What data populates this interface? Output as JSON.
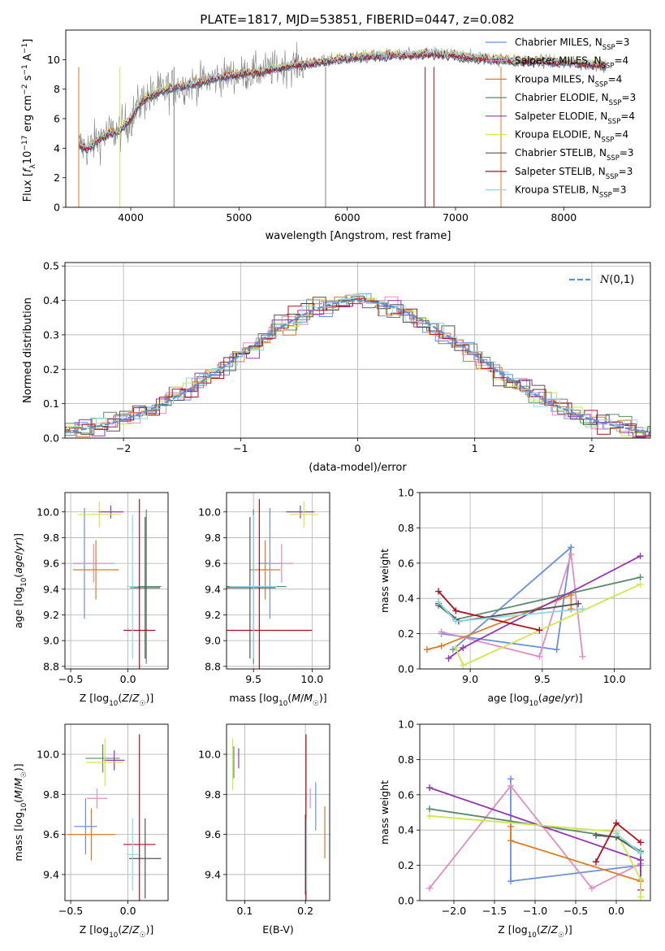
{
  "figure": {
    "title": "PLATE=1817, MJD=53851, FIBERID=0447, z=0.082"
  },
  "colors": {
    "Chabrier MILES": "#6b8fde",
    "Salpeter MILES": "#de8ec1",
    "Kroupa MILES": "#e07b24",
    "Chabrier ELODIE": "#5c8a6f",
    "Salpeter ELODIE": "#9435b5",
    "Kroupa ELODIE": "#cfe84a",
    "Chabrier STELIB": "#555555",
    "Salpeter STELIB": "#b0101d",
    "Kroupa STELIB": "#8ed8e6",
    "observed": "#7f7f7f",
    "normal": "#5b8fd8"
  },
  "chart_data": [
    {
      "id": "spectrum",
      "type": "line",
      "xlabel": "wavelength [Angstrom, rest frame]",
      "ylabel": "Flux [f_λ10^-17 erg cm^-2 s^-1 A^-1]",
      "xlim": [
        3400,
        8800
      ],
      "ylim": [
        0,
        12
      ],
      "xticks": [
        4000,
        5000,
        6000,
        7000,
        8000
      ],
      "yticks": [
        0,
        2,
        4,
        6,
        8,
        10
      ],
      "grid": false,
      "legend_position": "right",
      "legend": [
        {
          "model": "Chabrier MILES",
          "label": "Chabrier MILES, N",
          "sub": "SSP",
          "tail": "=3"
        },
        {
          "model": "Salpeter MILES",
          "label": "Salpeter MILES, N",
          "sub": "SSP",
          "tail": "=4"
        },
        {
          "model": "Kroupa MILES",
          "label": "Kroupa MILES, N",
          "sub": "SSP",
          "tail": "=4"
        },
        {
          "model": "Chabrier ELODIE",
          "label": "Chabrier ELODIE, N",
          "sub": "SSP",
          "tail": "=3"
        },
        {
          "model": "Salpeter ELODIE",
          "label": "Salpeter ELODIE, N",
          "sub": "SSP",
          "tail": "=4"
        },
        {
          "model": "Kroupa ELODIE",
          "label": "Kroupa ELODIE, N",
          "sub": "SSP",
          "tail": "=4"
        },
        {
          "model": "Chabrier STELIB",
          "label": "Chabrier STELIB, N",
          "sub": "SSP",
          "tail": "=3"
        },
        {
          "model": "Salpeter STELIB",
          "label": "Salpeter STELIB, N",
          "sub": "SSP",
          "tail": "=3"
        },
        {
          "model": "Kroupa STELIB",
          "label": "Kroupa STELIB, N",
          "sub": "SSP",
          "tail": "=3"
        }
      ],
      "continuum": {
        "wavelength": [
          3520,
          3600,
          3700,
          3800,
          3900,
          4000,
          4100,
          4200,
          4300,
          4400,
          4600,
          4800,
          5000,
          5200,
          5400,
          5600,
          5800,
          6000,
          6200,
          6400,
          6600,
          6800,
          7000,
          7200,
          7400,
          7600,
          7800,
          8000,
          8200,
          8400
        ],
        "flux": [
          4.2,
          4.0,
          4.6,
          5.0,
          5.2,
          6.0,
          7.2,
          7.6,
          7.9,
          8.1,
          8.4,
          8.8,
          9.0,
          9.2,
          9.5,
          9.7,
          9.9,
          10.1,
          10.2,
          10.3,
          10.3,
          10.4,
          10.3,
          10.1,
          10.0,
          9.9,
          9.9,
          9.8,
          9.7,
          9.6
        ]
      }
    },
    {
      "id": "residuals",
      "type": "histogram",
      "xlabel": "(data-model)/error",
      "ylabel": "Normed distribution",
      "xlim": [
        -2.5,
        2.5
      ],
      "ylim": [
        0,
        0.51
      ],
      "xticks": [
        -2,
        -1,
        0,
        1,
        2
      ],
      "yticks": [
        0.0,
        0.1,
        0.2,
        0.3,
        0.4,
        0.5
      ],
      "grid": true,
      "legend_position": "top-right",
      "legend_label": "N(0,1)",
      "bin_width": 0.11,
      "reference_curve": "standard normal N(0,1)"
    },
    {
      "id": "z-age",
      "type": "errorbar",
      "xlabel": "Z [log10(Z/Z☉)]",
      "ylabel": "age [log10(age/yr)]",
      "xlim": [
        -0.55,
        0.35
      ],
      "ylim": [
        8.78,
        10.15
      ],
      "xticks": [
        -0.5,
        0.0
      ],
      "yticks": [
        8.8,
        9.0,
        9.2,
        9.4,
        9.6,
        9.8,
        10.0
      ],
      "grid": true,
      "points": [
        {
          "model": "Chabrier MILES",
          "x": -0.38,
          "xerr": 0.1,
          "y": 9.6,
          "yerr": 0.43
        },
        {
          "model": "Salpeter MILES",
          "x": -0.3,
          "xerr": 0.18,
          "y": 9.6,
          "yerr": 0.15
        },
        {
          "model": "Kroupa MILES",
          "x": -0.28,
          "xerr": 0.2,
          "y": 9.55,
          "yerr": 0.23
        },
        {
          "model": "Chabrier ELODIE",
          "x": 0.16,
          "xerr": 0.13,
          "y": 9.42,
          "yerr": 0.6
        },
        {
          "model": "Salpeter ELODIE",
          "x": -0.15,
          "xerr": 0.11,
          "y": 10.0,
          "yerr": 0.05
        },
        {
          "model": "Kroupa ELODIE",
          "x": -0.25,
          "xerr": 0.19,
          "y": 9.98,
          "yerr": 0.1
        },
        {
          "model": "Chabrier STELIB",
          "x": 0.15,
          "xerr": 0.13,
          "y": 9.41,
          "yerr": 0.55
        },
        {
          "model": "Salpeter STELIB",
          "x": 0.1,
          "xerr": 0.14,
          "y": 9.08,
          "yerr": 1.02
        },
        {
          "model": "Kroupa STELIB",
          "x": 0.04,
          "xerr": 0.05,
          "y": 9.42,
          "yerr": 0.56
        }
      ]
    },
    {
      "id": "mass-age",
      "type": "errorbar",
      "xlabel": "mass [log10(M/M☉)]",
      "ylabel": "",
      "xlim": [
        9.27,
        10.15
      ],
      "ylim": [
        8.78,
        10.15
      ],
      "xticks": [
        9.5,
        10.0
      ],
      "yticks": [
        8.8,
        9.0,
        9.2,
        9.4,
        9.6,
        9.8,
        10.0
      ],
      "grid": true,
      "points": [
        {
          "model": "Chabrier MILES",
          "x": 9.64,
          "xerr": 0.1,
          "y": 9.6,
          "yerr": 0.43
        },
        {
          "model": "Salpeter MILES",
          "x": 9.74,
          "xerr": 0.1,
          "y": 9.6,
          "yerr": 0.15
        },
        {
          "model": "Kroupa MILES",
          "x": 9.6,
          "xerr": 0.13,
          "y": 9.55,
          "yerr": 0.23
        },
        {
          "model": "Chabrier ELODIE",
          "x": 9.5,
          "xerr": 0.28,
          "y": 9.42,
          "yerr": 0.6
        },
        {
          "model": "Salpeter ELODIE",
          "x": 9.9,
          "xerr": 0.12,
          "y": 10.0,
          "yerr": 0.05
        },
        {
          "model": "Kroupa ELODIE",
          "x": 9.93,
          "xerr": 0.12,
          "y": 9.98,
          "yerr": 0.1
        },
        {
          "model": "Chabrier STELIB",
          "x": 9.47,
          "xerr": 0.22,
          "y": 9.41,
          "yerr": 0.55
        },
        {
          "model": "Salpeter STELIB",
          "x": 9.55,
          "xerr": 0.45,
          "y": 9.08,
          "yerr": 1.02
        },
        {
          "model": "Kroupa STELIB",
          "x": 9.5,
          "xerr": 0.2,
          "y": 9.42,
          "yerr": 0.56
        }
      ]
    },
    {
      "id": "age-weight",
      "type": "line",
      "xlabel": "age [log10(age/yr)]",
      "ylabel": "mass weight",
      "xlim": [
        8.65,
        10.25
      ],
      "ylim": [
        0,
        1
      ],
      "xticks": [
        9.0,
        9.5,
        10.0
      ],
      "yticks": [
        0.0,
        0.2,
        0.4,
        0.6,
        0.8,
        1.0
      ],
      "grid": true,
      "series": [
        {
          "model": "Chabrier MILES",
          "x": [
            8.8,
            9.6,
            9.7,
            8.88
          ],
          "y": [
            0.2,
            0.11,
            0.69,
            0.11
          ]
        },
        {
          "model": "Salpeter MILES",
          "x": [
            8.8,
            9.48,
            9.7,
            9.78
          ],
          "y": [
            0.21,
            0.07,
            0.65,
            0.07
          ]
        },
        {
          "model": "Kroupa MILES",
          "x": [
            8.7,
            8.8,
            9.7,
            9.7
          ],
          "y": [
            0.11,
            0.13,
            0.42,
            0.34
          ]
        },
        {
          "model": "Chabrier ELODIE",
          "x": [
            8.78,
            8.9,
            10.18
          ],
          "y": [
            0.36,
            0.28,
            0.52
          ]
        },
        {
          "model": "Salpeter ELODIE",
          "x": [
            8.85,
            8.95,
            10.18
          ],
          "y": [
            0.06,
            0.12,
            0.64
          ]
        },
        {
          "model": "Kroupa ELODIE",
          "x": [
            8.9,
            8.95,
            10.18
          ],
          "y": [
            0.12,
            0.02,
            0.48
          ]
        },
        {
          "model": "Chabrier STELIB",
          "x": [
            8.78,
            8.92,
            9.75
          ],
          "y": [
            0.37,
            0.27,
            0.37
          ]
        },
        {
          "model": "Salpeter STELIB",
          "x": [
            8.78,
            8.9,
            9.48
          ],
          "y": [
            0.44,
            0.33,
            0.22
          ]
        },
        {
          "model": "Kroupa STELIB",
          "x": [
            8.78,
            8.9,
            9.78
          ],
          "y": [
            0.38,
            0.27,
            0.34
          ]
        }
      ]
    },
    {
      "id": "z-mass",
      "type": "errorbar",
      "xlabel": "Z [log10(Z/Z☉)]",
      "ylabel": "mass [log10(M/M☉)]",
      "xlim": [
        -0.55,
        0.35
      ],
      "ylim": [
        9.27,
        10.15
      ],
      "xticks": [
        -0.5,
        0.0
      ],
      "yticks": [
        9.4,
        9.6,
        9.8,
        10.0
      ],
      "grid": true,
      "points": [
        {
          "model": "Chabrier MILES",
          "x": -0.37,
          "xerr": 0.1,
          "y": 9.64,
          "yerr": 0.14
        },
        {
          "model": "Salpeter MILES",
          "x": -0.27,
          "xerr": 0.09,
          "y": 9.78,
          "yerr": 0.05
        },
        {
          "model": "Kroupa MILES",
          "x": -0.32,
          "xerr": 0.21,
          "y": 9.6,
          "yerr": 0.13
        },
        {
          "model": "Chabrier ELODIE",
          "x": -0.22,
          "xerr": 0.15,
          "y": 9.98,
          "yerr": 0.07
        },
        {
          "model": "Salpeter ELODIE",
          "x": -0.12,
          "xerr": 0.09,
          "y": 9.97,
          "yerr": 0.05
        },
        {
          "model": "Kroupa ELODIE",
          "x": -0.2,
          "xerr": 0.16,
          "y": 9.96,
          "yerr": 0.12
        },
        {
          "model": "Chabrier STELIB",
          "x": 0.15,
          "xerr": 0.14,
          "y": 9.48,
          "yerr": 0.2
        },
        {
          "model": "Salpeter STELIB",
          "x": 0.1,
          "xerr": 0.14,
          "y": 9.55,
          "yerr": 0.55
        },
        {
          "model": "Kroupa STELIB",
          "x": 0.04,
          "xerr": 0.05,
          "y": 9.5,
          "yerr": 0.18
        }
      ]
    },
    {
      "id": "ebv-mass",
      "type": "errorbar",
      "xlabel": "E(B-V)",
      "ylabel": "",
      "xlim": [
        0.07,
        0.24
      ],
      "ylim": [
        9.27,
        10.15
      ],
      "xticks": [
        0.1,
        0.2
      ],
      "yticks": [
        9.4,
        9.6,
        9.8,
        10.0
      ],
      "grid": true,
      "points": [
        {
          "model": "Chabrier MILES",
          "x": 0.217,
          "xerr": 0.0,
          "y": 9.74,
          "yerr": 0.12
        },
        {
          "model": "Salpeter MILES",
          "x": 0.208,
          "xerr": 0.0,
          "y": 9.78,
          "yerr": 0.05
        },
        {
          "model": "Kroupa MILES",
          "x": 0.232,
          "xerr": 0.0,
          "y": 9.61,
          "yerr": 0.13
        },
        {
          "model": "Chabrier ELODIE",
          "x": 0.082,
          "xerr": 0.0,
          "y": 9.96,
          "yerr": 0.08
        },
        {
          "model": "Salpeter ELODIE",
          "x": 0.09,
          "xerr": 0.0,
          "y": 9.98,
          "yerr": 0.05
        },
        {
          "model": "Kroupa ELODIE",
          "x": 0.08,
          "xerr": 0.0,
          "y": 9.95,
          "yerr": 0.13
        },
        {
          "model": "Chabrier STELIB",
          "x": 0.2,
          "xerr": 0.0,
          "y": 9.5,
          "yerr": 0.2
        },
        {
          "model": "Salpeter STELIB",
          "x": 0.201,
          "xerr": 0.0,
          "y": 9.55,
          "yerr": 0.55
        },
        {
          "model": "Kroupa STELIB",
          "x": 0.202,
          "xerr": 0.0,
          "y": 9.5,
          "yerr": 0.18
        }
      ]
    },
    {
      "id": "z-weight",
      "type": "line",
      "xlabel": "Z [log10(Z/Z☉)]",
      "ylabel": "mass weight",
      "xlim": [
        -2.42,
        0.42
      ],
      "ylim": [
        0,
        1
      ],
      "xticks": [
        -2.0,
        -1.5,
        -1.0,
        -0.5,
        0.0
      ],
      "yticks": [
        0.0,
        0.2,
        0.4,
        0.6,
        0.8,
        1.0
      ],
      "grid": true,
      "series": [
        {
          "model": "Chabrier MILES",
          "x": [
            -1.3,
            -1.3,
            0.3
          ],
          "y": [
            0.69,
            0.11,
            0.2
          ]
        },
        {
          "model": "Salpeter MILES",
          "x": [
            -2.3,
            -1.3,
            -0.3,
            0.3
          ],
          "y": [
            0.07,
            0.65,
            0.07,
            0.21
          ]
        },
        {
          "model": "Kroupa MILES",
          "x": [
            -1.3,
            -1.3,
            0.3
          ],
          "y": [
            0.42,
            0.34,
            0.11
          ]
        },
        {
          "model": "Chabrier ELODIE",
          "x": [
            -2.3,
            0.0,
            0.3,
            0.3
          ],
          "y": [
            0.52,
            0.36,
            0.28,
            0.12
          ]
        },
        {
          "model": "Salpeter ELODIE",
          "x": [
            -2.3,
            0.3,
            0.3
          ],
          "y": [
            0.64,
            0.23,
            0.06
          ]
        },
        {
          "model": "Kroupa ELODIE",
          "x": [
            -2.3,
            0.0,
            0.3,
            0.3
          ],
          "y": [
            0.48,
            0.39,
            0.12,
            0.02
          ]
        },
        {
          "model": "Chabrier STELIB",
          "x": [
            -0.25,
            0.0,
            0.3
          ],
          "y": [
            0.37,
            0.36,
            0.27
          ]
        },
        {
          "model": "Salpeter STELIB",
          "x": [
            -0.25,
            0.0,
            0.3
          ],
          "y": [
            0.22,
            0.44,
            0.33
          ]
        },
        {
          "model": "Kroupa STELIB",
          "x": [
            0.0,
            0.3
          ],
          "y": [
            0.38,
            0.27
          ]
        }
      ]
    }
  ]
}
